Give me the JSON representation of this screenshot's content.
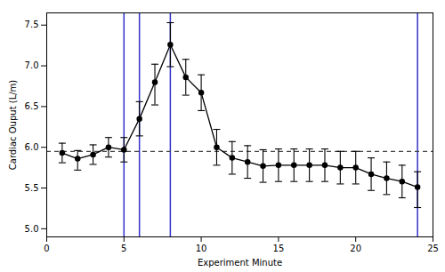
{
  "chart_data": {
    "type": "line",
    "xlabel": "Experiment Minute",
    "ylabel": "Cardiac Ouput (L/m)",
    "x": [
      1,
      2,
      3,
      4,
      5,
      6,
      7,
      8,
      9,
      10,
      11,
      12,
      13,
      14,
      15,
      16,
      17,
      18,
      19,
      20,
      21,
      22,
      23,
      24
    ],
    "values": [
      5.93,
      5.86,
      5.91,
      6.0,
      5.97,
      6.35,
      6.8,
      7.26,
      6.86,
      6.67,
      6.0,
      5.87,
      5.82,
      5.77,
      5.78,
      5.78,
      5.78,
      5.78,
      5.75,
      5.75,
      5.67,
      5.62,
      5.58,
      5.51
    ],
    "yerr_upper": [
      0.12,
      0.1,
      0.12,
      0.12,
      0.15,
      0.21,
      0.22,
      0.27,
      0.22,
      0.22,
      0.22,
      0.2,
      0.2,
      0.2,
      0.2,
      0.2,
      0.2,
      0.2,
      0.2,
      0.2,
      0.2,
      0.2,
      0.2,
      0.19
    ],
    "yerr_lower": [
      0.12,
      0.14,
      0.12,
      0.12,
      0.15,
      0.21,
      0.28,
      0.27,
      0.22,
      0.22,
      0.22,
      0.2,
      0.2,
      0.2,
      0.2,
      0.2,
      0.2,
      0.2,
      0.2,
      0.2,
      0.2,
      0.2,
      0.2,
      0.25
    ],
    "color": "#000000",
    "marker": "o",
    "line_style": "solid",
    "vlines": {
      "values": [
        5,
        6,
        8,
        24
      ],
      "color": "#3333cc"
    },
    "baseline": {
      "value": 5.95,
      "color": "#444444",
      "line_style": "dashed"
    },
    "xlim": [
      0,
      25
    ],
    "xticks": [
      0,
      5,
      10,
      15,
      20,
      25
    ],
    "ylim": [
      4.9,
      7.65
    ],
    "yticks": [
      {
        "value": 5,
        "label": "5.0"
      },
      5.5,
      {
        "value": 6,
        "label": "6.0"
      },
      6.5,
      {
        "value": 7,
        "label": "7.0"
      },
      7.5
    ]
  }
}
